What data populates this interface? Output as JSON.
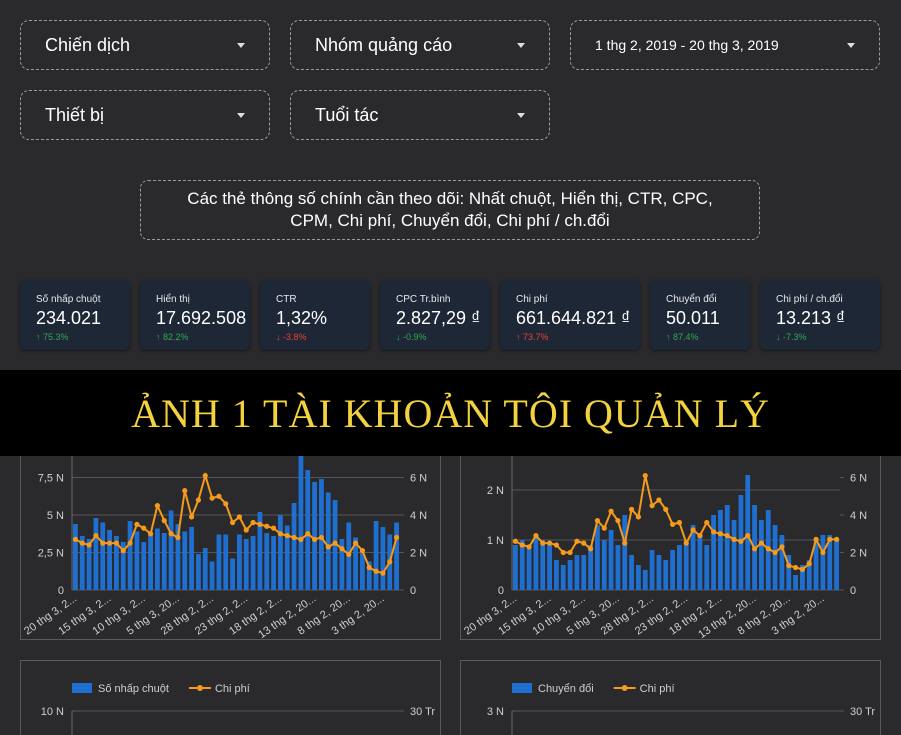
{
  "filters": [
    {
      "label": "Chiến dịch"
    },
    {
      "label": "Nhóm quảng cáo"
    },
    {
      "label": "1 thg 2, 2019 - 20 thg 3, 2019"
    },
    {
      "label": "Thiết bị"
    },
    {
      "label": "Tuổi tác"
    }
  ],
  "info": "Các thẻ thông số chính cần theo dõi: Nhất chuột, Hiển thị, CTR, CPC, CPM, Chi phí, Chuyển đổi, Chi phí / ch.đổi",
  "kpis": [
    {
      "label": "Số nhấp chuột",
      "value": "234.021",
      "delta": "↑ 75.3%",
      "delta_color": "#34a853"
    },
    {
      "label": "Hiển thị",
      "value": "17.692.508",
      "delta": "↑ 82.2%",
      "delta_color": "#34a853"
    },
    {
      "label": "CTR",
      "value": "1,32%",
      "delta": "↓ -3.8%",
      "delta_color": "#ea4335"
    },
    {
      "label": "CPC Tr.bình",
      "value": "2.827,29 ₫",
      "delta": "↓ -0.9%",
      "delta_color": "#34a853"
    },
    {
      "label": "Chi phí",
      "value": "661.644.821 ₫",
      "delta": "↑ 73.7%",
      "delta_color": "#ea4335"
    },
    {
      "label": "Chuyển đổi",
      "value": "50.011",
      "delta": "↑ 87.4%",
      "delta_color": "#34a853"
    },
    {
      "label": "Chi phí / ch.đổi",
      "value": "13.213 ₫",
      "delta": "↓ -7.3%",
      "delta_color": "#34a853"
    }
  ],
  "banner": "ẢNH 1 TÀI KHOẢN TÔI QUẢN LÝ",
  "charts": [
    {
      "type": "bar-line",
      "categories": [
        "20 thg 3, 2...",
        null,
        null,
        null,
        null,
        "15 thg 3, 2...",
        null,
        null,
        null,
        null,
        "10 thg 3, 2...",
        null,
        null,
        null,
        null,
        "5 thg 3, 20...",
        null,
        null,
        null,
        null,
        "28 thg 2, 2...",
        null,
        null,
        null,
        null,
        "23 thg 2, 2...",
        null,
        null,
        null,
        null,
        "18 thg 2, 2...",
        null,
        null,
        null,
        null,
        "13 thg 2, 20...",
        null,
        null,
        null,
        null,
        "8 thg 2, 20...",
        null,
        null,
        null,
        null,
        "3 thg 2, 20...",
        null,
        null
      ],
      "series": [
        {
          "color": "#1f6fd1",
          "values": [
            4400,
            3600,
            3400,
            4800,
            4500,
            4000,
            3600,
            3200,
            4600,
            3900,
            3200,
            3700,
            4100,
            3800,
            5300,
            4400,
            3900,
            4200,
            2400,
            2800,
            1900,
            3700,
            3700,
            2100,
            3700,
            3400,
            3600,
            5200,
            3800,
            3600,
            5000,
            4300,
            5800,
            9000,
            8000,
            7200,
            7400,
            6500,
            6000,
            3400,
            4500,
            3500,
            2500,
            1900,
            4600,
            4200,
            3700,
            4500
          ]
        },
        {
          "color": "#f59a1b",
          "axis": "y2",
          "values": [
            2700,
            2500,
            2400,
            2900,
            2500,
            2500,
            2500,
            2100,
            2500,
            3500,
            3300,
            3000,
            4500,
            3700,
            3000,
            2800,
            5300,
            3900,
            4800,
            6100,
            4900,
            5000,
            4600,
            3600,
            3900,
            3200,
            3600,
            3500,
            3400,
            3300,
            3000,
            2900,
            2800,
            2700,
            3000,
            2700,
            2800,
            2300,
            2500,
            2200,
            1900,
            2500,
            2100,
            1200,
            1000,
            900,
            1500,
            2800
          ]
        }
      ],
      "ylim": [
        0,
        9000
      ],
      "yticks": [
        0,
        {
          "value": 2500,
          "label": "2,5 N"
        },
        {
          "value": 5000,
          "label": "5 N"
        },
        {
          "value": 7500,
          "label": "7,5 N"
        }
      ],
      "y2lim": [
        0,
        7200
      ],
      "y2ticks": [
        0,
        {
          "value": 2000,
          "label": "2 N"
        },
        {
          "value": 4000,
          "label": "4 N"
        },
        {
          "value": 6000,
          "label": "6 N"
        }
      ]
    },
    {
      "type": "bar-line",
      "categories": [
        "20 thg 3, 2...",
        null,
        null,
        null,
        null,
        "15 thg 3, 2...",
        null,
        null,
        null,
        null,
        "10 thg 3, 2...",
        null,
        null,
        null,
        null,
        "5 thg 3, 20...",
        null,
        null,
        null,
        null,
        "28 thg 2, 2...",
        null,
        null,
        null,
        null,
        "23 thg 2, 2...",
        null,
        null,
        null,
        null,
        "18 thg 2, 2...",
        null,
        null,
        null,
        null,
        "13 thg 2, 20...",
        null,
        null,
        null,
        null,
        "8 thg 2, 20...",
        null,
        null,
        null,
        null,
        "3 thg 2, 20...",
        null,
        null
      ],
      "series": [
        {
          "color": "#1f6fd1",
          "values": [
            900,
            1000,
            900,
            1100,
            1000,
            900,
            600,
            500,
            600,
            700,
            700,
            900,
            1300,
            1000,
            1200,
            900,
            1500,
            700,
            500,
            400,
            800,
            700,
            600,
            800,
            900,
            1000,
            1300,
            1100,
            900,
            1500,
            1600,
            1700,
            1400,
            1900,
            2300,
            1700,
            1400,
            1600,
            1300,
            1100,
            700,
            300,
            500,
            600,
            1000,
            1100,
            1100,
            1000
          ]
        },
        {
          "color": "#f59a1b",
          "axis": "y2",
          "values": [
            2600,
            2400,
            2300,
            2900,
            2500,
            2500,
            2400,
            2000,
            2000,
            2600,
            2500,
            2200,
            3700,
            3300,
            4200,
            3700,
            2500,
            4300,
            3900,
            6100,
            4500,
            4800,
            4300,
            3500,
            3600,
            2500,
            3200,
            2900,
            3600,
            3100,
            3000,
            2900,
            2700,
            2600,
            2900,
            2200,
            2500,
            2200,
            2000,
            2300,
            1300,
            1200,
            1100,
            1400,
            2700,
            2000,
            2700,
            2700
          ]
        }
      ],
      "ylim": [
        0,
        2700
      ],
      "yticks": [
        0,
        {
          "value": 1000,
          "label": "1 N"
        },
        {
          "value": 2000,
          "label": "2 N"
        }
      ],
      "y2lim": [
        0,
        7200
      ],
      "y2ticks": [
        0,
        {
          "value": 2000,
          "label": "2 N"
        },
        {
          "value": 4000,
          "label": "4 N"
        },
        {
          "value": 6000,
          "label": "6 N"
        }
      ]
    },
    {
      "type": "bar-line",
      "series": [
        {
          "name": "Số nhấp chuột",
          "color": "#1f6fd1"
        },
        {
          "name": "Chi phí",
          "color": "#f59a1b",
          "axis": "y2"
        }
      ],
      "ylim": [
        0,
        10000
      ],
      "yticks": [
        {
          "value": 10000,
          "label": "10 N"
        }
      ],
      "y2lim": [
        0,
        30000000
      ],
      "y2ticks": [
        {
          "value": 30000000,
          "label": "30 Tr"
        }
      ]
    },
    {
      "type": "bar-line",
      "series": [
        {
          "name": "Chuyển đổi",
          "color": "#1f6fd1"
        },
        {
          "name": "Chi phí",
          "color": "#f59a1b",
          "axis": "y2"
        }
      ],
      "ylim": [
        0,
        3000
      ],
      "yticks": [
        {
          "value": 3000,
          "label": "3 N"
        }
      ],
      "y2lim": [
        0,
        30000000
      ],
      "y2ticks": [
        {
          "value": 30000000,
          "label": "30 Tr"
        }
      ]
    }
  ]
}
